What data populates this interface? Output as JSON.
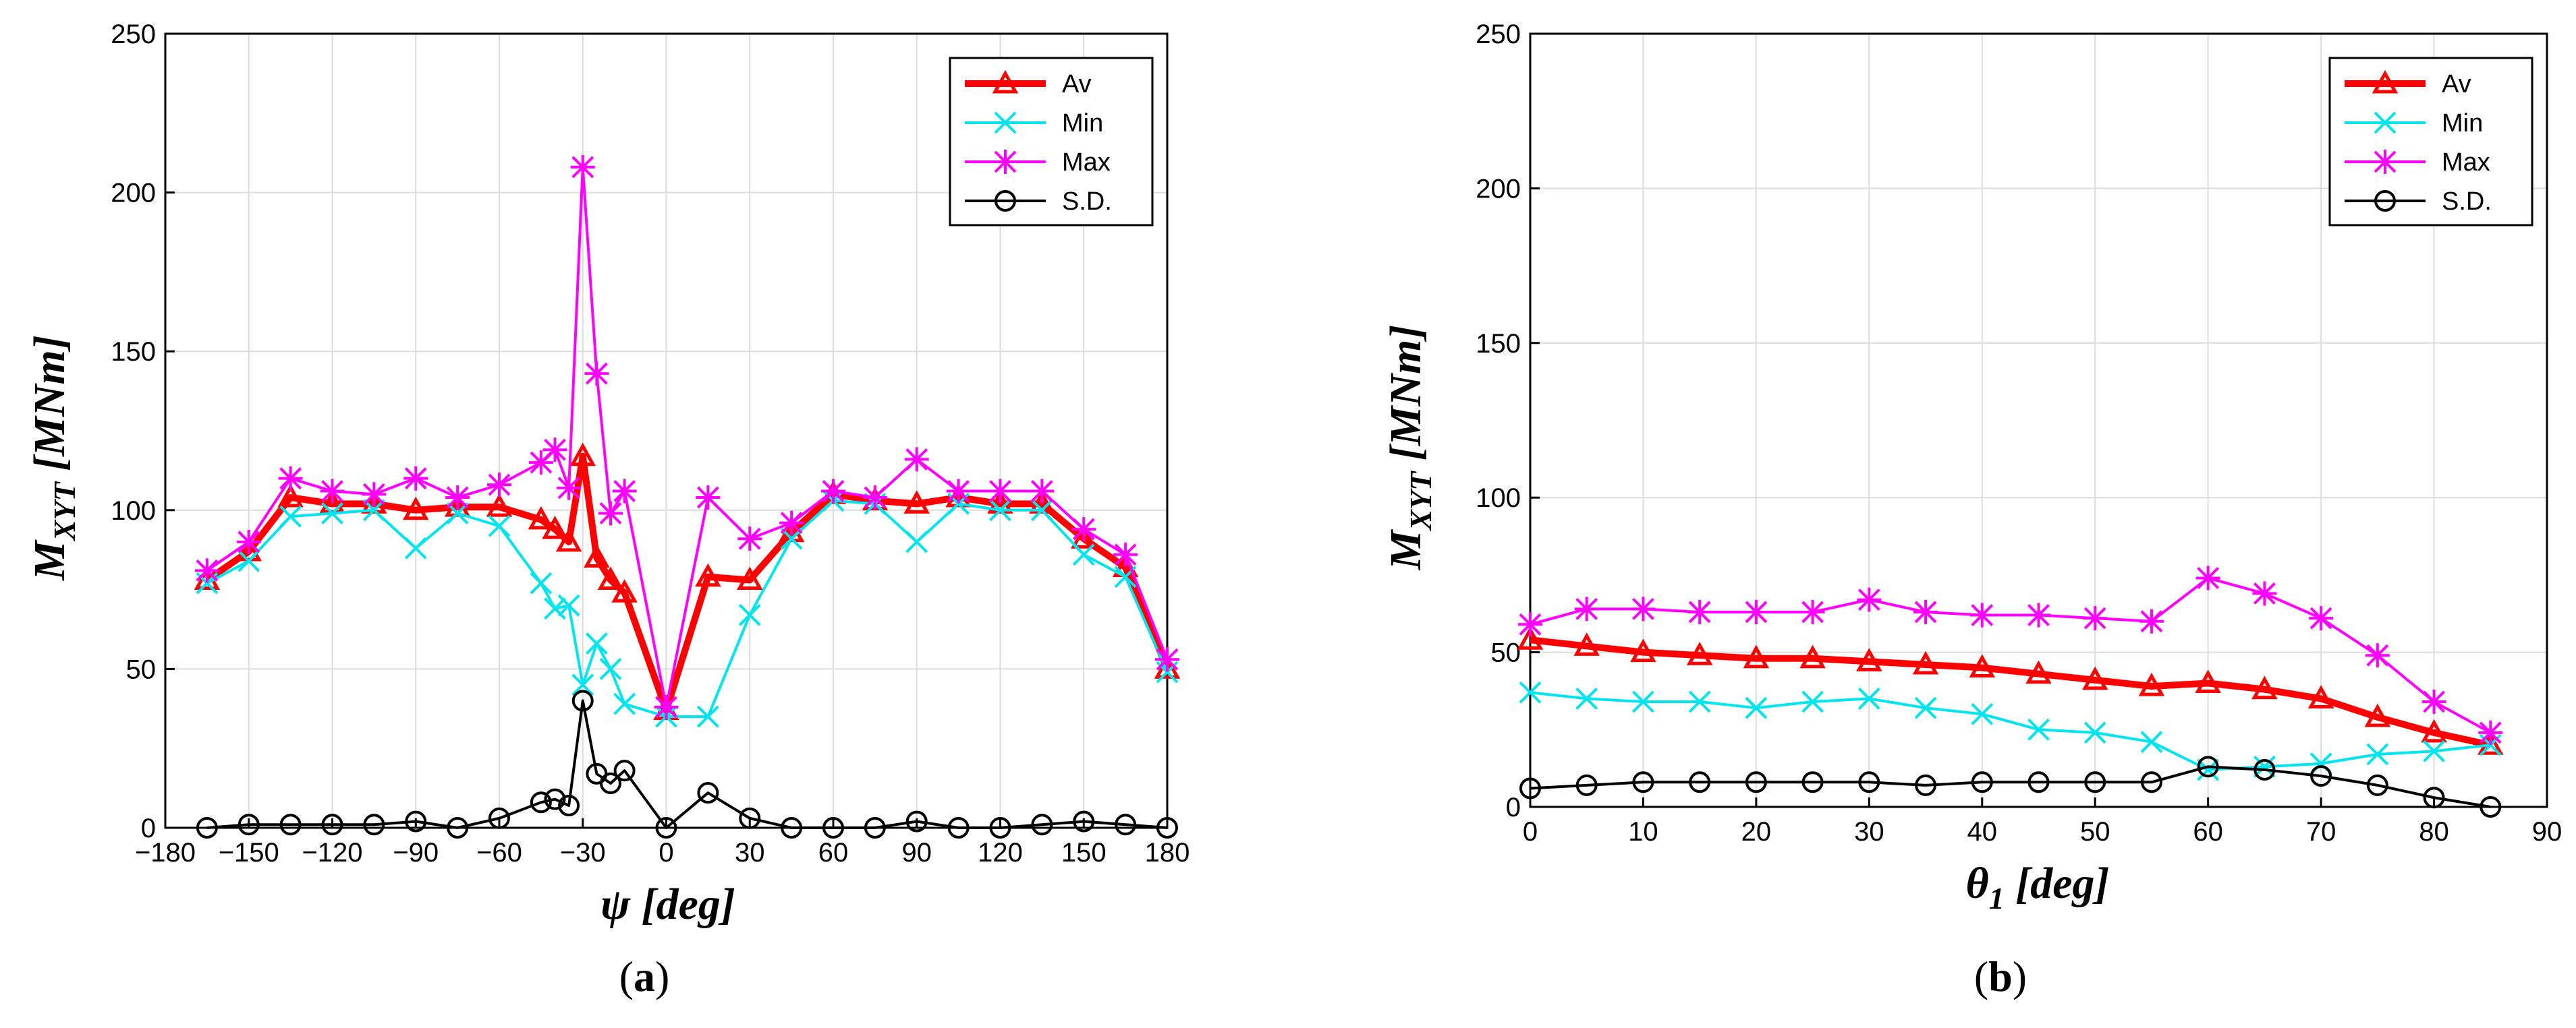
{
  "chart_data": [
    {
      "type": "line",
      "panel_label": {
        "open": "(",
        "letter": "a",
        "close": ")"
      },
      "xlabel": {
        "sym": "ψ",
        "unit": " [deg]"
      },
      "ylabel": {
        "sym": "M",
        "sub": "XYT",
        "unit": " [MNm]"
      },
      "xlim": [
        -180,
        180
      ],
      "ylim": [
        0,
        250
      ],
      "xticks": [
        -180,
        -150,
        -120,
        -90,
        -60,
        -30,
        0,
        30,
        60,
        90,
        120,
        150,
        180
      ],
      "xtick_labels": [
        "−180",
        "−150",
        "−120",
        "−90",
        "−60",
        "−30",
        "0",
        "30",
        "60",
        "90",
        "120",
        "150",
        "180"
      ],
      "yticks": [
        0,
        50,
        100,
        150,
        200,
        250
      ],
      "ytick_labels": [
        "0",
        "50",
        "100",
        "150",
        "200",
        "250"
      ],
      "grid": true,
      "legend_position": "top-right",
      "x": [
        -165,
        -150,
        -135,
        -120,
        -105,
        -90,
        -75,
        -60,
        -45,
        -40,
        -35,
        -30,
        -25,
        -20,
        -15,
        0,
        15,
        30,
        45,
        60,
        75,
        90,
        105,
        120,
        135,
        150,
        165,
        180
      ],
      "series": [
        {
          "name": "Av",
          "color": "#ff0000",
          "marker": "triangle",
          "values": [
            78,
            87,
            104,
            102,
            102,
            100,
            101,
            101,
            97,
            94,
            90,
            117,
            85,
            78,
            74,
            37,
            79,
            78,
            93,
            105,
            103,
            102,
            104,
            102,
            102,
            91,
            82,
            50
          ]
        },
        {
          "name": "Min",
          "color": "#00e5ee",
          "marker": "x",
          "values": [
            77,
            84,
            98,
            99,
            100,
            88,
            99,
            95,
            77,
            69,
            70,
            45,
            58,
            50,
            39,
            35,
            35,
            67,
            91,
            103,
            102,
            90,
            102,
            100,
            100,
            86,
            79,
            49
          ]
        },
        {
          "name": "Max",
          "color": "#ff00ff",
          "marker": "star",
          "values": [
            81,
            90,
            110,
            106,
            105,
            110,
            104,
            108,
            115,
            119,
            107,
            208,
            143,
            99,
            106,
            38,
            104,
            91,
            96,
            106,
            104,
            116,
            106,
            106,
            106,
            94,
            86,
            53
          ]
        },
        {
          "name": "S.D.",
          "color": "#000000",
          "marker": "circle",
          "values": [
            0,
            1,
            1,
            1,
            1,
            2,
            0,
            3,
            8,
            9,
            7,
            40,
            17,
            14,
            18,
            0,
            11,
            3,
            0,
            0,
            0,
            2,
            0,
            0,
            1,
            2,
            1,
            0
          ]
        }
      ]
    },
    {
      "type": "line",
      "panel_label": {
        "open": "(",
        "letter": "b",
        "close": ")"
      },
      "xlabel": {
        "sym": "θ",
        "sub": "1",
        "unit": " [deg]"
      },
      "ylabel": {
        "sym": "M",
        "sub": "XYT",
        "unit": " [MNm]"
      },
      "xlim": [
        0,
        90
      ],
      "ylim": [
        0,
        250
      ],
      "xticks": [
        0,
        10,
        20,
        30,
        40,
        50,
        60,
        70,
        80,
        90
      ],
      "xtick_labels": [
        "0",
        "10",
        "20",
        "30",
        "40",
        "50",
        "60",
        "70",
        "80",
        "90"
      ],
      "yticks": [
        0,
        50,
        100,
        150,
        200,
        250
      ],
      "ytick_labels": [
        "0",
        "50",
        "100",
        "150",
        "200",
        "250"
      ],
      "grid": true,
      "legend_position": "top-right",
      "x": [
        0,
        5,
        10,
        15,
        20,
        25,
        30,
        35,
        40,
        45,
        50,
        55,
        60,
        65,
        70,
        75,
        80,
        85
      ],
      "series": [
        {
          "name": "Av",
          "color": "#ff0000",
          "marker": "triangle",
          "values": [
            54,
            52,
            50,
            49,
            48,
            48,
            47,
            46,
            45,
            43,
            41,
            39,
            40,
            38,
            35,
            29,
            24,
            20
          ]
        },
        {
          "name": "Min",
          "color": "#00e5ee",
          "marker": "x",
          "values": [
            37,
            35,
            34,
            34,
            32,
            34,
            35,
            32,
            30,
            25,
            24,
            21,
            12,
            13,
            14,
            17,
            18,
            20
          ]
        },
        {
          "name": "Max",
          "color": "#ff00ff",
          "marker": "star",
          "values": [
            59,
            64,
            64,
            63,
            63,
            63,
            67,
            63,
            62,
            62,
            61,
            60,
            74,
            69,
            61,
            49,
            34,
            24
          ]
        },
        {
          "name": "S.D.",
          "color": "#000000",
          "marker": "circle",
          "values": [
            6,
            7,
            8,
            8,
            8,
            8,
            8,
            7,
            8,
            8,
            8,
            8,
            13,
            12,
            10,
            7,
            3,
            0
          ]
        }
      ]
    }
  ]
}
